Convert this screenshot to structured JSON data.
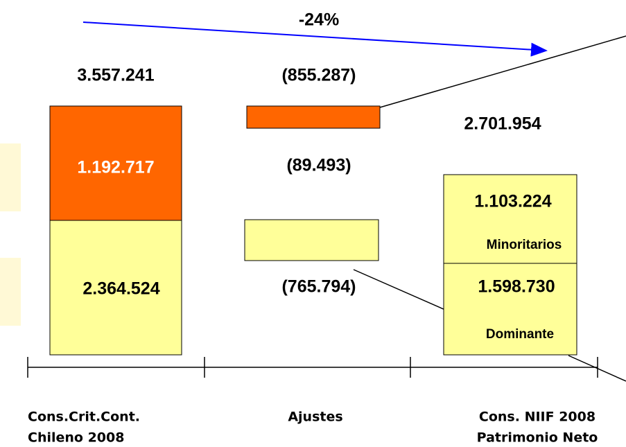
{
  "header": {
    "change": "-24%"
  },
  "columns": [
    {
      "total": "3.557.241",
      "upper": "1.192.717",
      "lower": "2.364.524",
      "label": [
        "Cons.Crit.Cont.",
        "Chileno 2008"
      ]
    },
    {
      "total": "(855.287)",
      "upper": "(89.493)",
      "lower": "(765.794)",
      "label": [
        "Ajustes"
      ]
    },
    {
      "total": "2.701.954",
      "upper": "1.103.224",
      "upper_name": "Minoritarios",
      "lower": "1.598.730",
      "lower_name": "Dominante",
      "label": [
        "Cons. NIIF 2008",
        "Patrimonio Neto"
      ]
    }
  ]
}
